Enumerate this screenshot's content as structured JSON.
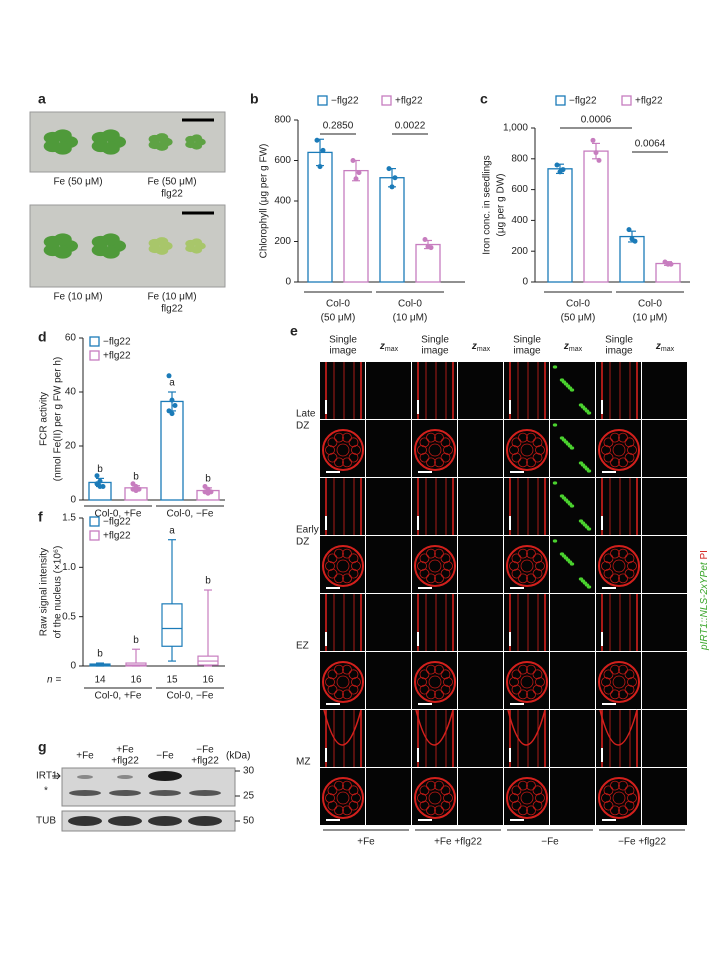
{
  "panel_a": {
    "panel": "a",
    "labels": [
      [
        "Fe (50 μM)"
      ],
      [
        "Fe (50 μM)",
        "flg22"
      ],
      [
        "Fe (10 μM)"
      ],
      [
        "Fe (10 μM)",
        "flg22"
      ]
    ]
  },
  "chart_data": [
    {
      "type": "bar",
      "panel": "b",
      "ylabel": [
        "Chlorophyll (μg per g FW)"
      ],
      "ylim": [
        0,
        800
      ],
      "yticks": [
        0,
        200,
        400,
        600,
        800
      ],
      "categories": [
        [
          "Col-0",
          "(50 μM)"
        ],
        [
          "Col-0",
          "(10 μM)"
        ]
      ],
      "series": [
        {
          "name": "−flg22",
          "color": "#1b7bb8",
          "values": [
            640,
            515
          ],
          "errors": [
            65,
            45
          ],
          "points": [
            [
              700,
              570,
              650
            ],
            [
              560,
              470,
              515
            ]
          ]
        },
        {
          "name": "+flg22",
          "color": "#c77dbf",
          "values": [
            550,
            185
          ],
          "errors": [
            50,
            20
          ],
          "points": [
            [
              600,
              510,
              540
            ],
            [
              210,
              175,
              170
            ]
          ]
        }
      ],
      "significance": [
        "0.2850",
        "0.0022"
      ]
    },
    {
      "type": "bar",
      "panel": "c",
      "ylabel": [
        "Iron conc. in seedlings",
        "(μg per g DW)"
      ],
      "ylim": [
        0,
        1000
      ],
      "yticks": [
        0,
        200,
        400,
        600,
        800,
        {
          "value": 1000,
          "label": "1,000"
        }
      ],
      "categories": [
        [
          "Col-0",
          "(50 μM)"
        ],
        [
          "Col-0",
          "(10 μM)"
        ]
      ],
      "series": [
        {
          "name": "−flg22",
          "color": "#1b7bb8",
          "values": [
            735,
            295
          ],
          "errors": [
            30,
            35
          ],
          "points": [
            [
              760,
              715,
              730
            ],
            [
              340,
              280,
              265
            ]
          ]
        },
        {
          "name": "+flg22",
          "color": "#c77dbf",
          "values": [
            850,
            120
          ],
          "errors": [
            50,
            12
          ],
          "points": [
            [
              920,
              840,
              790
            ],
            [
              130,
              115,
              115
            ]
          ]
        }
      ],
      "significance": [
        "0.0006",
        "0.0064"
      ]
    },
    {
      "type": "bar",
      "panel": "d",
      "ylabel": [
        "FCR activity",
        "(nmol Fe(II) per g FW per h)"
      ],
      "ylim": [
        0,
        60
      ],
      "yticks": [
        0,
        20,
        40,
        60
      ],
      "categories": [
        [
          "Col-0, +Fe"
        ],
        [
          "Col-0, −Fe"
        ]
      ],
      "series": [
        {
          "name": "−flg22",
          "color": "#1b7bb8",
          "values": [
            6.5,
            36.5
          ],
          "errors": [
            1.5,
            3.5
          ],
          "points": [
            [
              9,
              7,
              5,
              6,
              5
            ],
            [
              46,
              37,
              35,
              33,
              32
            ]
          ],
          "letters": [
            "b",
            "a"
          ]
        },
        {
          "name": "+flg22",
          "color": "#c77dbf",
          "values": [
            4.5,
            3.5
          ],
          "errors": [
            0.8,
            1
          ],
          "points": [
            [
              6,
              5,
              4,
              4,
              3.5
            ],
            [
              5,
              4,
              3,
              3,
              2.5
            ]
          ],
          "letters": [
            "b",
            "b"
          ]
        }
      ]
    },
    {
      "type": "box",
      "panel": "f",
      "ylabel": [
        "Raw signal intensity",
        "of the nucleus (×10⁶)"
      ],
      "ylim": [
        0,
        1.5
      ],
      "yticks": [
        0,
        0.5,
        {
          "value": 1,
          "label": "1.0"
        },
        1.5
      ],
      "categories": [
        [
          "Col-0, +Fe"
        ],
        [
          "Col-0, −Fe"
        ]
      ],
      "n_label": "n =",
      "series": [
        {
          "name": "−flg22",
          "color": "#1b7bb8",
          "n": [
            14,
            15
          ],
          "letters": [
            "b",
            "a"
          ],
          "boxes": [
            {
              "min": 0,
              "q1": 0,
              "median": 0.01,
              "q3": 0.02,
              "max": 0.03
            },
            {
              "min": 0.05,
              "q1": 0.2,
              "median": 0.38,
              "q3": 0.63,
              "max": 1.28
            }
          ]
        },
        {
          "name": "+flg22",
          "color": "#c77dbf",
          "n": [
            16,
            16
          ],
          "letters": [
            "b",
            "b"
          ],
          "boxes": [
            {
              "min": 0,
              "q1": 0,
              "median": 0.01,
              "q3": 0.03,
              "max": 0.17
            },
            {
              "min": 0,
              "q1": 0.01,
              "median": 0.05,
              "q3": 0.1,
              "max": 0.77
            }
          ]
        }
      ]
    }
  ],
  "panel_e": {
    "panel": "e",
    "single": [
      "Single",
      "image"
    ],
    "zmax": [
      "z",
      "max"
    ],
    "rows": [
      [
        "Late",
        "DZ"
      ],
      [
        "Early",
        "DZ"
      ],
      [
        "EZ"
      ],
      [
        "MZ"
      ]
    ],
    "conditions": [
      "+Fe",
      "+Fe +flg22",
      "−Fe",
      "−Fe +flg22"
    ],
    "side_label": [
      "pIRT1::NLS-2xYPet",
      " PI"
    ]
  },
  "panel_g": {
    "panel": "g",
    "lanes": [
      [
        "+Fe"
      ],
      [
        "+Fe",
        "+flg22"
      ],
      [
        "−Fe"
      ],
      [
        "−Fe",
        "+flg22"
      ]
    ],
    "kda": "(kDa)",
    "bands": [
      "IRT1",
      "*",
      "TUB"
    ],
    "markers": [
      30,
      25,
      50
    ]
  }
}
